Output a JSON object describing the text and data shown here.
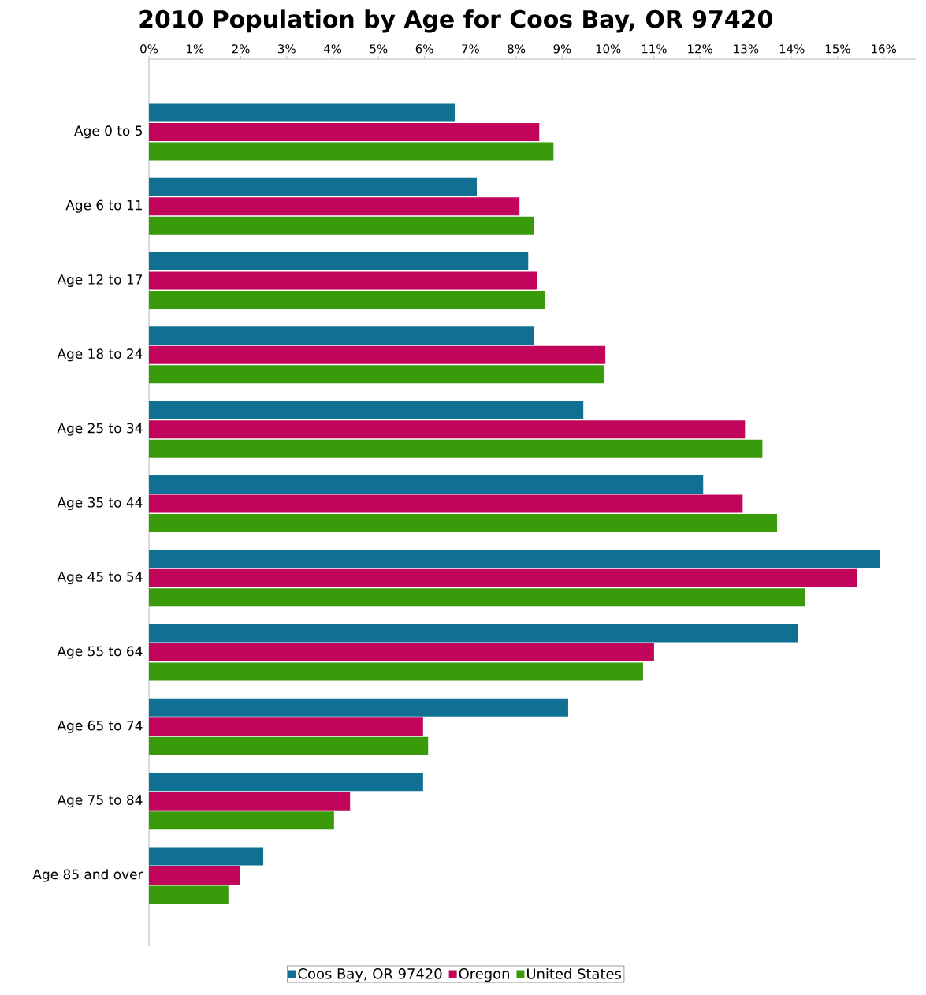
{
  "chart_data": {
    "type": "bar",
    "orientation": "horizontal",
    "title": "2010 Population by Age for Coos Bay, OR 97420",
    "categories": [
      "Age 0 to 5",
      "Age 6 to 11",
      "Age 12 to 17",
      "Age 18 to 24",
      "Age 25 to 34",
      "Age 35 to 44",
      "Age 45 to 54",
      "Age 55 to 64",
      "Age 65 to 74",
      "Age 75 to 84",
      "Age 85 and over"
    ],
    "series": [
      {
        "name": "Coos Bay, OR 97420",
        "color": "#0f7094",
        "values": [
          6.66,
          7.14,
          8.26,
          8.39,
          9.46,
          12.07,
          15.91,
          14.13,
          9.13,
          5.97,
          2.49
        ]
      },
      {
        "name": "Oregon",
        "color": "#c0055a",
        "values": [
          8.5,
          8.07,
          8.45,
          9.94,
          12.98,
          12.93,
          15.43,
          11.0,
          5.97,
          4.38,
          1.99
        ]
      },
      {
        "name": "United States",
        "color": "#3a9b0a",
        "values": [
          8.81,
          8.38,
          8.62,
          9.91,
          13.36,
          13.68,
          14.28,
          10.76,
          6.08,
          4.03,
          1.73
        ]
      }
    ],
    "xlim": [
      0,
      16.7
    ],
    "xticks": [
      {
        "value": 0,
        "label": "0%"
      },
      {
        "value": 1,
        "label": "1%"
      },
      {
        "value": 2,
        "label": "2%"
      },
      {
        "value": 3,
        "label": "3%"
      },
      {
        "value": 4,
        "label": "4%"
      },
      {
        "value": 5,
        "label": "5%"
      },
      {
        "value": 6,
        "label": "6%"
      },
      {
        "value": 7,
        "label": "7%"
      },
      {
        "value": 8,
        "label": "8%"
      },
      {
        "value": 9,
        "label": "9%"
      },
      {
        "value": 10,
        "label": "10%"
      },
      {
        "value": 11,
        "label": "11%"
      },
      {
        "value": 12,
        "label": "12%"
      },
      {
        "value": 13,
        "label": "13%"
      },
      {
        "value": 14,
        "label": "14%"
      },
      {
        "value": 15,
        "label": "15%"
      },
      {
        "value": 16,
        "label": "16%"
      }
    ],
    "legend": "bottom"
  }
}
